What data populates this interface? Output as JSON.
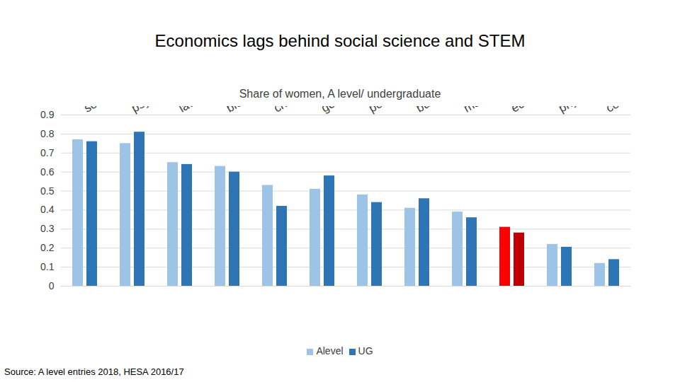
{
  "chart_data": {
    "type": "bar",
    "title": "Economics lags behind social science and STEM",
    "subtitle": "Share of women, A level/ undergraduate",
    "caption": "Source: A level entries 2018, HESA 2016/17",
    "categories": [
      "sociology",
      "psychology",
      "law",
      "biology",
      "chemistry",
      "geography",
      "politics",
      "business",
      "maths",
      "economics",
      "physics",
      "computing"
    ],
    "series": [
      {
        "name": "Alevel",
        "color": "#9dc3e6",
        "colors": [
          "#9dc3e6",
          "#9dc3e6",
          "#9dc3e6",
          "#9dc3e6",
          "#9dc3e6",
          "#9dc3e6",
          "#9dc3e6",
          "#9dc3e6",
          "#9dc3e6",
          "#ff0000",
          "#9dc3e6",
          "#9dc3e6"
        ],
        "values": [
          0.77,
          0.75,
          0.65,
          0.63,
          0.53,
          0.51,
          0.48,
          0.41,
          0.39,
          0.31,
          0.22,
          0.12
        ]
      },
      {
        "name": "UG",
        "color": "#2e75b6",
        "colors": [
          "#2e75b6",
          "#2e75b6",
          "#2e75b6",
          "#2e75b6",
          "#2e75b6",
          "#2e75b6",
          "#2e75b6",
          "#2e75b6",
          "#2e75b6",
          "#c00000",
          "#2e75b6",
          "#2e75b6"
        ],
        "values": [
          0.76,
          0.81,
          0.64,
          0.6,
          0.42,
          0.58,
          0.44,
          0.46,
          0.36,
          0.28,
          0.205,
          0.14
        ]
      }
    ],
    "ylim": [
      0,
      0.9
    ],
    "yticks": [
      0,
      0.1,
      0.2,
      0.3,
      0.4,
      0.5,
      0.6,
      0.7,
      0.8,
      0.9
    ],
    "grid": true,
    "legend": "bottom"
  }
}
